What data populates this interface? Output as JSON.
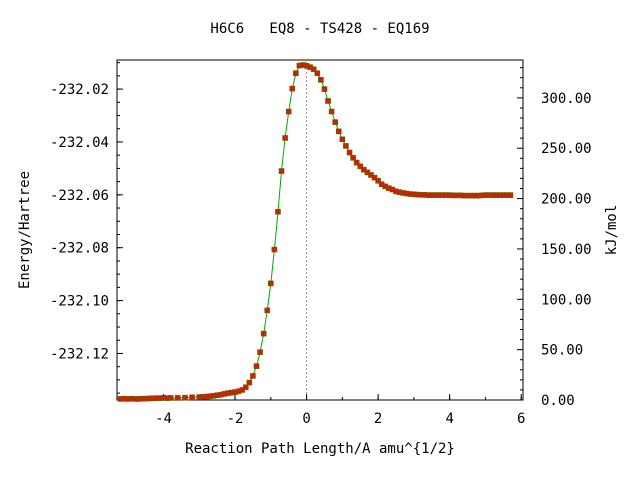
{
  "chart_data": {
    "type": "line",
    "title": "H6C6   EQ8 - TS428 - EQ169",
    "xlabel": "Reaction Path Length/A amu^{1/2}",
    "ylabel": "Energy/Hartree",
    "y2label": "kJ/mol",
    "xlim": [
      -5.3,
      6.05
    ],
    "ylim": [
      -232.1376,
      -232.009
    ],
    "y2lim": [
      0,
      337.6
    ],
    "x_ticks": [
      -4,
      -2,
      0,
      2,
      4,
      6
    ],
    "x_tick_labels": [
      "-4",
      "-2",
      "0",
      "2",
      "4",
      "6"
    ],
    "y_ticks": [
      -232.02,
      -232.04,
      -232.06,
      -232.08,
      -232.1,
      -232.12
    ],
    "y_tick_labels": [
      "-232.02",
      "-232.04",
      "-232.06",
      "-232.08",
      "-232.10",
      "-232.12"
    ],
    "y2_ticks": [
      300,
      250,
      200,
      150,
      100,
      50,
      0
    ],
    "y2_tick_labels": [
      "300.00",
      "250.00",
      "200.00",
      "150.00",
      "100.00",
      "50.00",
      "0.00"
    ],
    "ts_marker_x": 0,
    "grid": false,
    "line_color": "#00aa00",
    "marker_color": "#cc2200",
    "series": [
      {
        "x": [
          -5.2,
          -5.1,
          -5.0,
          -4.9,
          -4.8,
          -4.7,
          -4.6,
          -4.5,
          -4.4,
          -4.3,
          -4.2,
          -4.1,
          -4.0,
          -3.9,
          -3.8,
          -3.6,
          -3.4,
          -3.2,
          -3.0,
          -2.9,
          -2.8,
          -2.7,
          -2.6,
          -2.5,
          -2.4,
          -2.3,
          -2.2,
          -2.1,
          -2.0,
          -1.9,
          -1.8,
          -1.7,
          -1.6,
          -1.5,
          -1.4,
          -1.3,
          -1.2,
          -1.1,
          -1.0,
          -0.9,
          -0.8,
          -0.7,
          -0.6,
          -0.5,
          -0.4,
          -0.3,
          -0.2,
          -0.1,
          0.0,
          0.1,
          0.2,
          0.3,
          0.4,
          0.5,
          0.6,
          0.7,
          0.8,
          0.9,
          1.0,
          1.1,
          1.2,
          1.3,
          1.4,
          1.5,
          1.6,
          1.7,
          1.8,
          1.9,
          2.0,
          2.1,
          2.2,
          2.3,
          2.4,
          2.5,
          2.6,
          2.7,
          2.8,
          2.9,
          3.0,
          3.1,
          3.2,
          3.3,
          3.4,
          3.5,
          3.6,
          3.7,
          3.8,
          3.9,
          4.0,
          4.1,
          4.2,
          4.3,
          4.4,
          4.5,
          4.6,
          4.7,
          4.8,
          4.9,
          5.0,
          5.1,
          5.2,
          5.3,
          5.4,
          5.5,
          5.6,
          5.7
        ],
        "y": [
          -232.1372,
          -232.1371,
          -232.1372,
          -232.1371,
          -232.1372,
          -232.1372,
          -232.1371,
          -232.1371,
          -232.137,
          -232.137,
          -232.1369,
          -232.1369,
          -232.1368,
          -232.1369,
          -232.1368,
          -232.1368,
          -232.1367,
          -232.1366,
          -232.1365,
          -232.1364,
          -232.1363,
          -232.1362,
          -232.136,
          -232.1358,
          -232.1356,
          -232.1353,
          -232.135,
          -232.1348,
          -232.1346,
          -232.1343,
          -232.1338,
          -232.1328,
          -232.131,
          -232.1285,
          -232.1248,
          -232.1195,
          -232.1125,
          -232.1037,
          -232.0935,
          -232.0807,
          -232.0664,
          -232.051,
          -232.0385,
          -232.0285,
          -232.0198,
          -232.014,
          -232.0111,
          -232.0109,
          -232.0112,
          -232.0117,
          -232.0125,
          -232.014,
          -232.0165,
          -232.02,
          -232.0245,
          -232.0285,
          -232.0325,
          -232.036,
          -232.039,
          -232.0415,
          -232.044,
          -232.046,
          -232.0478,
          -232.0492,
          -232.0505,
          -232.0515,
          -232.0525,
          -232.0535,
          -232.0547,
          -232.056,
          -232.0568,
          -232.0575,
          -232.058,
          -232.0587,
          -232.059,
          -232.0593,
          -232.0595,
          -232.0597,
          -232.0598,
          -232.0599,
          -232.06,
          -232.06,
          -232.0601,
          -232.0601,
          -232.0601,
          -232.0601,
          -232.0601,
          -232.0601,
          -232.0601,
          -232.0602,
          -232.0602,
          -232.0602,
          -232.0603,
          -232.0603,
          -232.0603,
          -232.0603,
          -232.0603,
          -232.0602,
          -232.0601,
          -232.0601,
          -232.0601,
          -232.0601,
          -232.0601,
          -232.0601,
          -232.0601,
          -232.0601
        ]
      }
    ]
  }
}
